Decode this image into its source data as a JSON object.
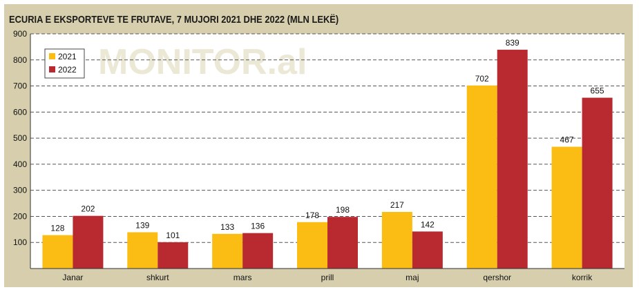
{
  "chart_data": {
    "type": "bar",
    "title": "ECURIA E EKSPORTEVE TE FRUTAVE, 7 MUJORI 2021 DHE 2022 (MLN LEKË)",
    "watermark": "MONITOR.al",
    "categories": [
      "Janar",
      "shkurt",
      "mars",
      "prill",
      "maj",
      "qershor",
      "korrik"
    ],
    "series": [
      {
        "name": "2021",
        "color": "#fbbd14",
        "values": [
          128,
          139,
          133,
          178,
          217,
          702,
          467
        ]
      },
      {
        "name": "2022",
        "color": "#b82a30",
        "values": [
          202,
          101,
          136,
          198,
          142,
          839,
          655
        ]
      }
    ],
    "y_ticks": [
      "100",
      "200",
      "300",
      "400",
      "500",
      "600",
      "700",
      "800",
      "900"
    ],
    "ylim": [
      0,
      900
    ],
    "grid": "horizontal dashed",
    "legend": "top-left",
    "colors": {
      "frame": "#d6ceac",
      "plot": "#ffffff",
      "grid": "#555555"
    }
  }
}
